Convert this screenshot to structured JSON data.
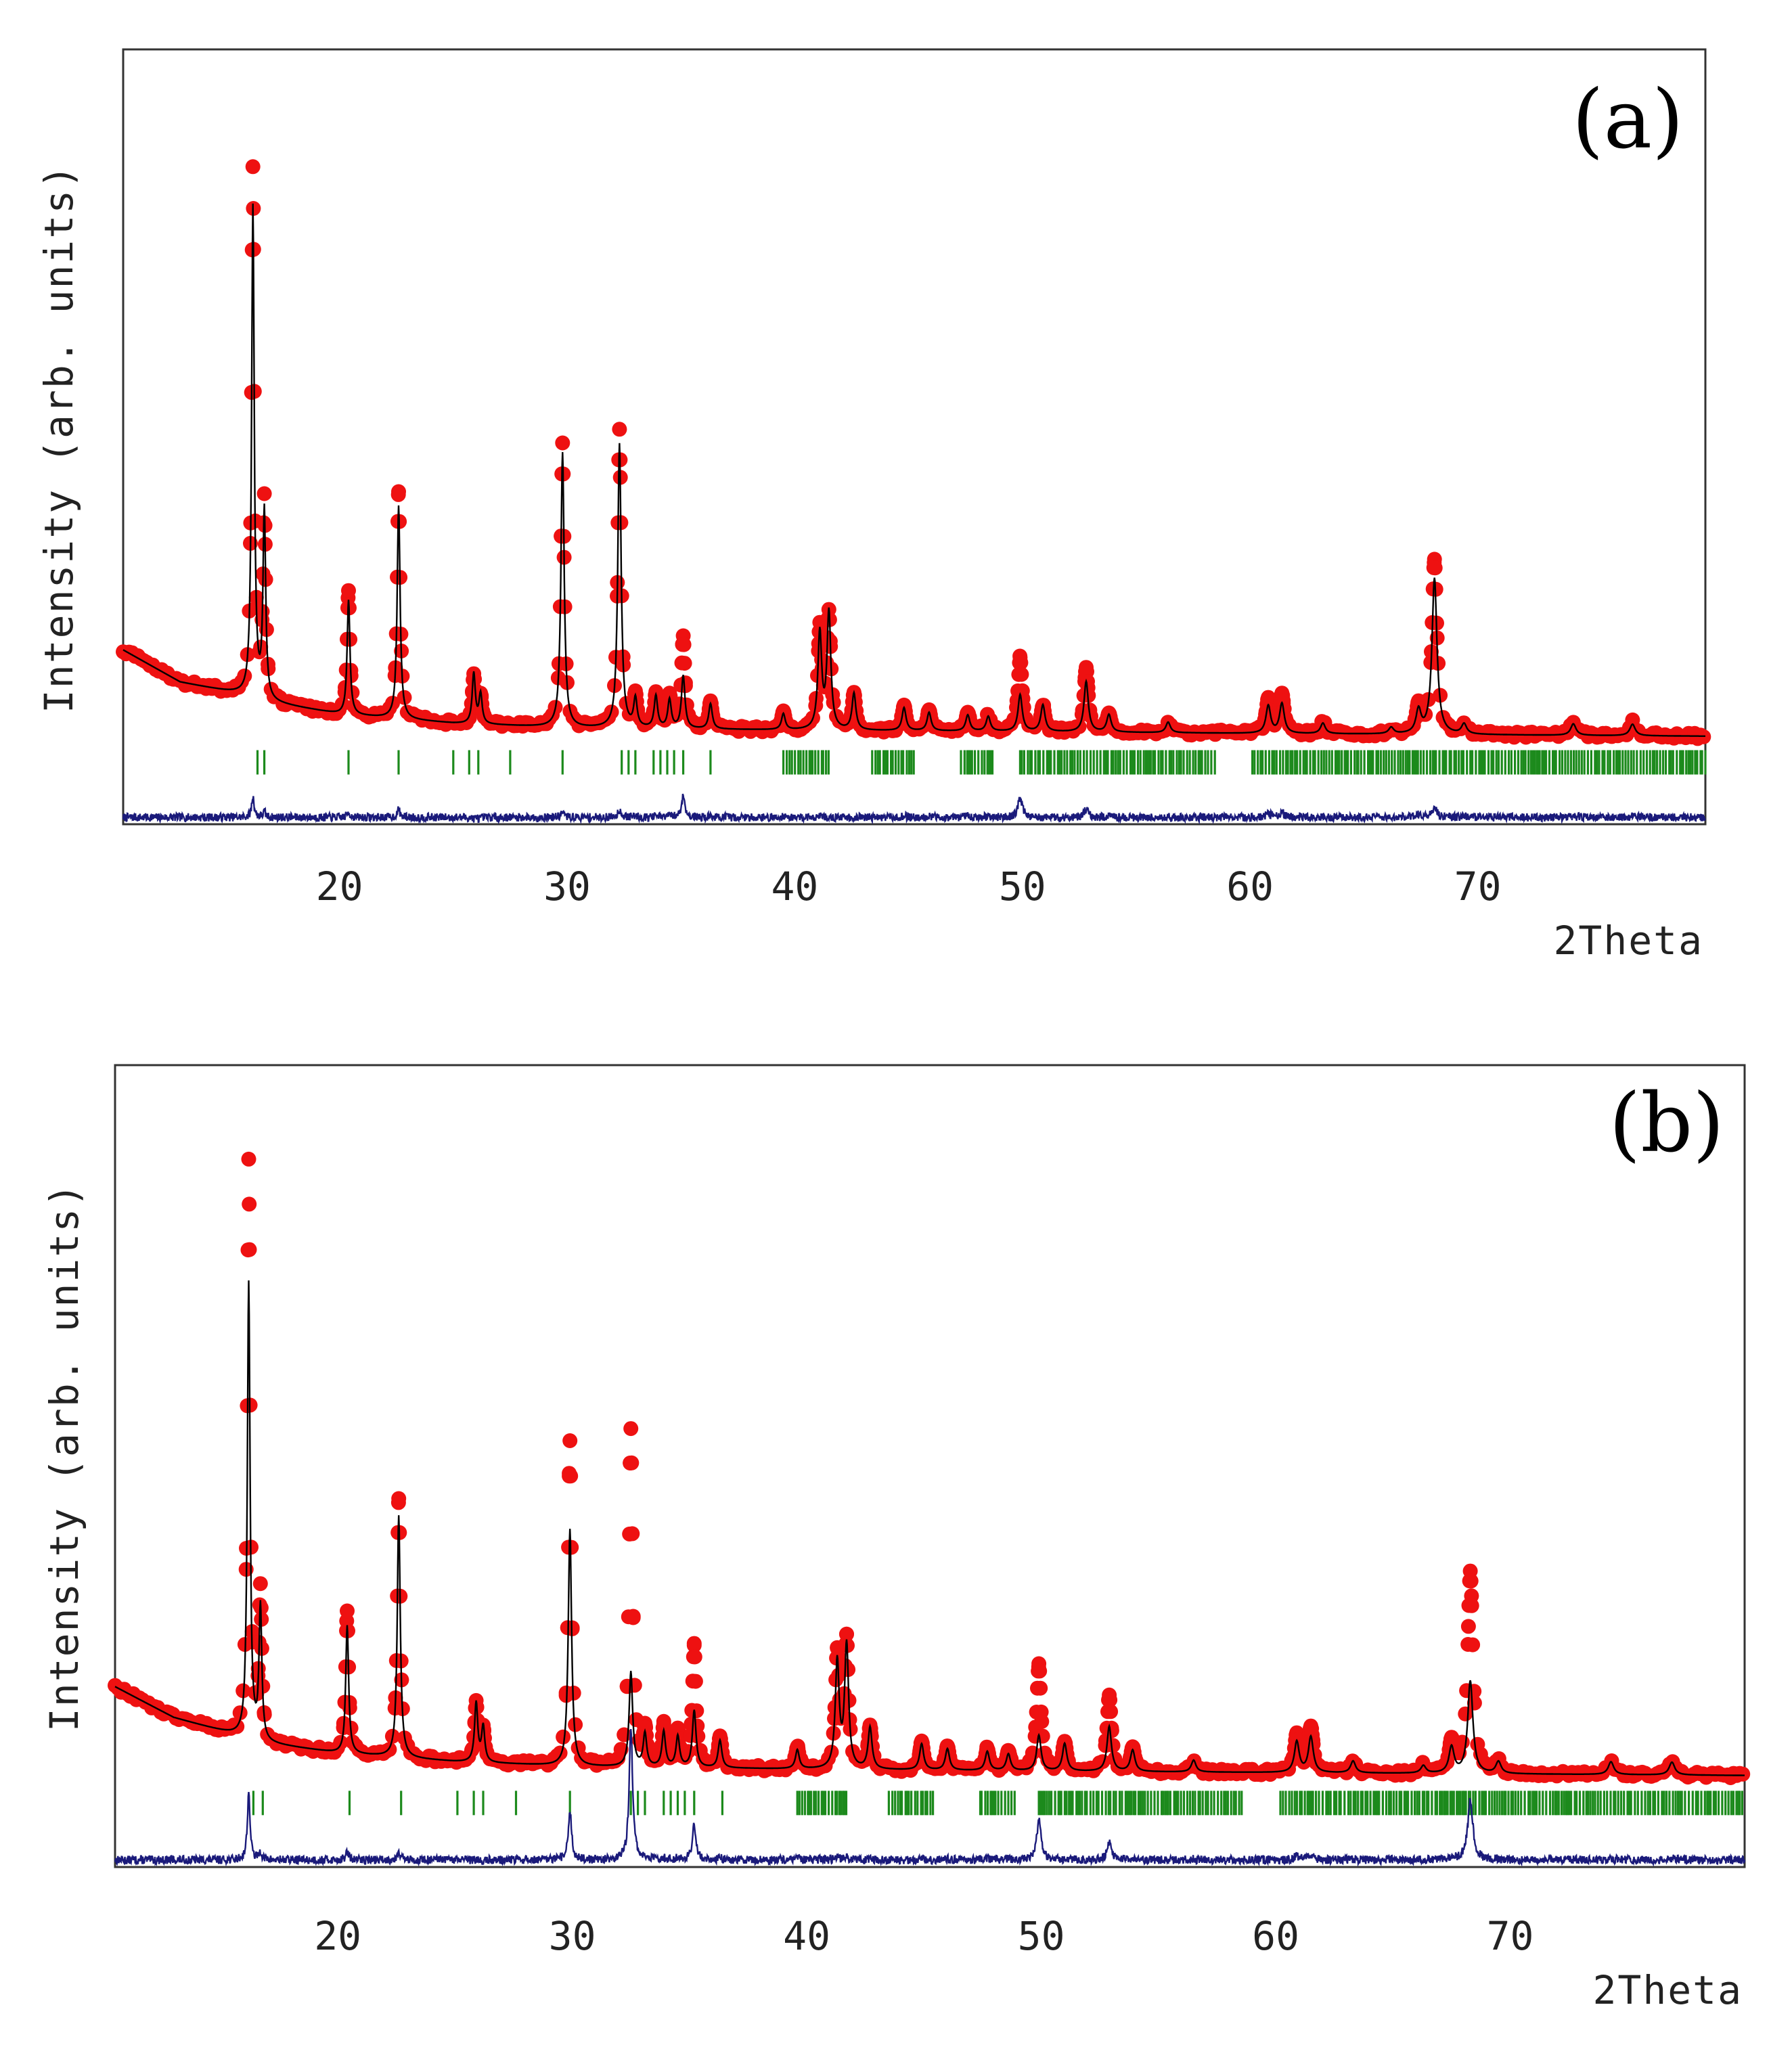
{
  "colors": {
    "observed": "#ee1111",
    "calculated": "#000000",
    "difference": "#1a1a7a",
    "bragg": "#1c8a1c",
    "frame": "#333333"
  },
  "chart_data": [
    {
      "type": "line",
      "panel_label": "(a)",
      "xlabel": "2Theta",
      "ylabel": "Intensity (arb. units)",
      "xlim": [
        10.5,
        80
      ],
      "ylim": [
        -190,
        1500
      ],
      "x_ticks": [
        20,
        30,
        40,
        50,
        60,
        70
      ],
      "legend": "none",
      "series": [
        {
          "name": "observed",
          "style": "red circles"
        },
        {
          "name": "calculated",
          "style": "black line"
        },
        {
          "name": "Bragg positions",
          "style": "green ticks"
        },
        {
          "name": "difference",
          "style": "navy line"
        }
      ],
      "peaks": [
        {
          "x": 16.2,
          "obs": 1150,
          "calc": 1070
        },
        {
          "x": 16.7,
          "obs": 430,
          "calc": 410
        },
        {
          "x": 20.4,
          "obs": 270,
          "calc": 250
        },
        {
          "x": 22.6,
          "obs": 495,
          "calc": 465
        },
        {
          "x": 25.9,
          "obs": 105,
          "calc": 110
        },
        {
          "x": 26.2,
          "obs": 60,
          "calc": 65
        },
        {
          "x": 29.8,
          "obs": 620,
          "calc": 600
        },
        {
          "x": 32.3,
          "obs": 650,
          "calc": 620
        },
        {
          "x": 33.0,
          "obs": 70,
          "calc": 62
        },
        {
          "x": 33.9,
          "obs": 75,
          "calc": 70
        },
        {
          "x": 34.5,
          "obs": 70,
          "calc": 62
        },
        {
          "x": 35.1,
          "obs": 200,
          "calc": 115
        },
        {
          "x": 36.3,
          "obs": 60,
          "calc": 55
        },
        {
          "x": 39.5,
          "obs": 40,
          "calc": 35
        },
        {
          "x": 41.1,
          "obs": 220,
          "calc": 210
        },
        {
          "x": 41.5,
          "obs": 250,
          "calc": 255
        },
        {
          "x": 42.6,
          "obs": 80,
          "calc": 80
        },
        {
          "x": 44.8,
          "obs": 55,
          "calc": 50
        },
        {
          "x": 45.9,
          "obs": 45,
          "calc": 40
        },
        {
          "x": 47.6,
          "obs": 40,
          "calc": 35
        },
        {
          "x": 48.5,
          "obs": 35,
          "calc": 32
        },
        {
          "x": 49.9,
          "obs": 160,
          "calc": 80
        },
        {
          "x": 50.9,
          "obs": 55,
          "calc": 58
        },
        {
          "x": 52.8,
          "obs": 140,
          "calc": 110
        },
        {
          "x": 53.8,
          "obs": 40,
          "calc": 38
        },
        {
          "x": 56.4,
          "obs": 25,
          "calc": 23
        },
        {
          "x": 60.8,
          "obs": 75,
          "calc": 60
        },
        {
          "x": 61.4,
          "obs": 85,
          "calc": 65
        },
        {
          "x": 63.2,
          "obs": 25,
          "calc": 23
        },
        {
          "x": 66.2,
          "obs": 15,
          "calc": 14
        },
        {
          "x": 67.4,
          "obs": 60,
          "calc": 50
        },
        {
          "x": 68.1,
          "obs": 380,
          "calc": 340
        },
        {
          "x": 69.4,
          "obs": 25,
          "calc": 22
        },
        {
          "x": 74.2,
          "obs": 30,
          "calc": 25
        },
        {
          "x": 76.8,
          "obs": 30,
          "calc": 25
        }
      ],
      "background": {
        "points": [
          [
            10.5,
            190
          ],
          [
            13,
            120
          ],
          [
            15.5,
            95
          ],
          [
            17,
            75
          ],
          [
            20,
            50
          ],
          [
            25,
            30
          ],
          [
            30,
            20
          ],
          [
            40,
            15
          ],
          [
            50,
            12
          ],
          [
            60,
            8
          ],
          [
            70,
            5
          ],
          [
            80,
            2
          ]
        ]
      },
      "bragg_groups": [
        [
          16.4,
          16.7
        ],
        [
          20.4
        ],
        [
          22.6
        ],
        [
          25.0,
          25.7,
          26.1
        ],
        [
          27.5
        ],
        [
          29.8
        ],
        [
          32.4,
          32.7,
          33.0
        ],
        [
          33.8,
          34.1,
          34.4,
          34.7,
          35.1
        ],
        [
          36.3
        ]
      ],
      "bragg_dense_ranges": [
        [
          39.5,
          41.6
        ],
        [
          43.4,
          45.3
        ],
        [
          47.3,
          48.8
        ],
        [
          49.9,
          58.5
        ],
        [
          60.1,
          80
        ]
      ],
      "bragg_y": -55,
      "difference_baseline": -175,
      "difference_scale": 0.55,
      "seed": 7
    },
    {
      "type": "line",
      "panel_label": "(b)",
      "xlabel": "2Theta",
      "ylabel": "Intensity (arb. units)",
      "xlim": [
        10.5,
        80
      ],
      "ylim": [
        -190,
        1500
      ],
      "x_ticks": [
        20,
        30,
        40,
        50,
        60,
        70
      ],
      "legend": "none",
      "series": [
        {
          "name": "observed",
          "style": "red circles"
        },
        {
          "name": "calculated",
          "style": "black line"
        },
        {
          "name": "Bragg positions",
          "style": "green ticks"
        },
        {
          "name": "difference",
          "style": "navy line"
        }
      ],
      "peaks": [
        {
          "x": 16.2,
          "obs": 1215,
          "calc": 960
        },
        {
          "x": 16.7,
          "obs": 310,
          "calc": 280
        },
        {
          "x": 20.4,
          "obs": 300,
          "calc": 270
        },
        {
          "x": 22.6,
          "obs": 545,
          "calc": 510
        },
        {
          "x": 25.9,
          "obs": 125,
          "calc": 125
        },
        {
          "x": 26.2,
          "obs": 70,
          "calc": 75
        },
        {
          "x": 29.9,
          "obs": 685,
          "calc": 500
        },
        {
          "x": 32.5,
          "obs": 710,
          "calc": 200
        },
        {
          "x": 33.1,
          "obs": 75,
          "calc": 70
        },
        {
          "x": 33.9,
          "obs": 85,
          "calc": 75
        },
        {
          "x": 34.5,
          "obs": 75,
          "calc": 65
        },
        {
          "x": 35.2,
          "obs": 255,
          "calc": 120
        },
        {
          "x": 36.3,
          "obs": 65,
          "calc": 58
        },
        {
          "x": 39.6,
          "obs": 45,
          "calc": 40
        },
        {
          "x": 41.3,
          "obs": 240,
          "calc": 225
        },
        {
          "x": 41.7,
          "obs": 270,
          "calc": 260
        },
        {
          "x": 42.7,
          "obs": 90,
          "calc": 88
        },
        {
          "x": 44.9,
          "obs": 60,
          "calc": 55
        },
        {
          "x": 46.0,
          "obs": 50,
          "calc": 45
        },
        {
          "x": 47.7,
          "obs": 45,
          "calc": 40
        },
        {
          "x": 48.6,
          "obs": 40,
          "calc": 35
        },
        {
          "x": 49.9,
          "obs": 225,
          "calc": 75
        },
        {
          "x": 51.0,
          "obs": 60,
          "calc": 58
        },
        {
          "x": 52.9,
          "obs": 160,
          "calc": 95
        },
        {
          "x": 53.9,
          "obs": 50,
          "calc": 45
        },
        {
          "x": 56.5,
          "obs": 28,
          "calc": 25
        },
        {
          "x": 60.9,
          "obs": 80,
          "calc": 65
        },
        {
          "x": 61.5,
          "obs": 95,
          "calc": 75
        },
        {
          "x": 63.3,
          "obs": 28,
          "calc": 25
        },
        {
          "x": 66.3,
          "obs": 18,
          "calc": 16
        },
        {
          "x": 67.5,
          "obs": 65,
          "calc": 55
        },
        {
          "x": 68.3,
          "obs": 425,
          "calc": 195
        },
        {
          "x": 69.5,
          "obs": 28,
          "calc": 25
        },
        {
          "x": 74.3,
          "obs": 32,
          "calc": 27
        },
        {
          "x": 76.9,
          "obs": 32,
          "calc": 27
        }
      ],
      "background": {
        "points": [
          [
            10.5,
            190
          ],
          [
            13,
            125
          ],
          [
            15.5,
            90
          ],
          [
            17,
            70
          ],
          [
            20,
            50
          ],
          [
            25,
            32
          ],
          [
            30,
            22
          ],
          [
            40,
            16
          ],
          [
            50,
            12
          ],
          [
            60,
            9
          ],
          [
            70,
            6
          ],
          [
            80,
            3
          ]
        ]
      },
      "bragg_groups": [
        [
          16.4,
          16.8
        ],
        [
          20.5
        ],
        [
          22.7
        ],
        [
          25.1,
          25.8,
          26.2
        ],
        [
          27.6
        ],
        [
          29.9
        ],
        [
          32.5,
          32.8,
          33.1
        ],
        [
          33.9,
          34.2,
          34.5,
          34.8,
          35.2
        ],
        [
          36.4
        ]
      ],
      "bragg_dense_ranges": [
        [
          39.6,
          41.7
        ],
        [
          43.5,
          45.4
        ],
        [
          47.4,
          48.9
        ],
        [
          49.9,
          58.6
        ],
        [
          60.2,
          80
        ]
      ],
      "bragg_y": -55,
      "difference_baseline": -175,
      "difference_scale": 0.55,
      "seed": 13
    }
  ]
}
